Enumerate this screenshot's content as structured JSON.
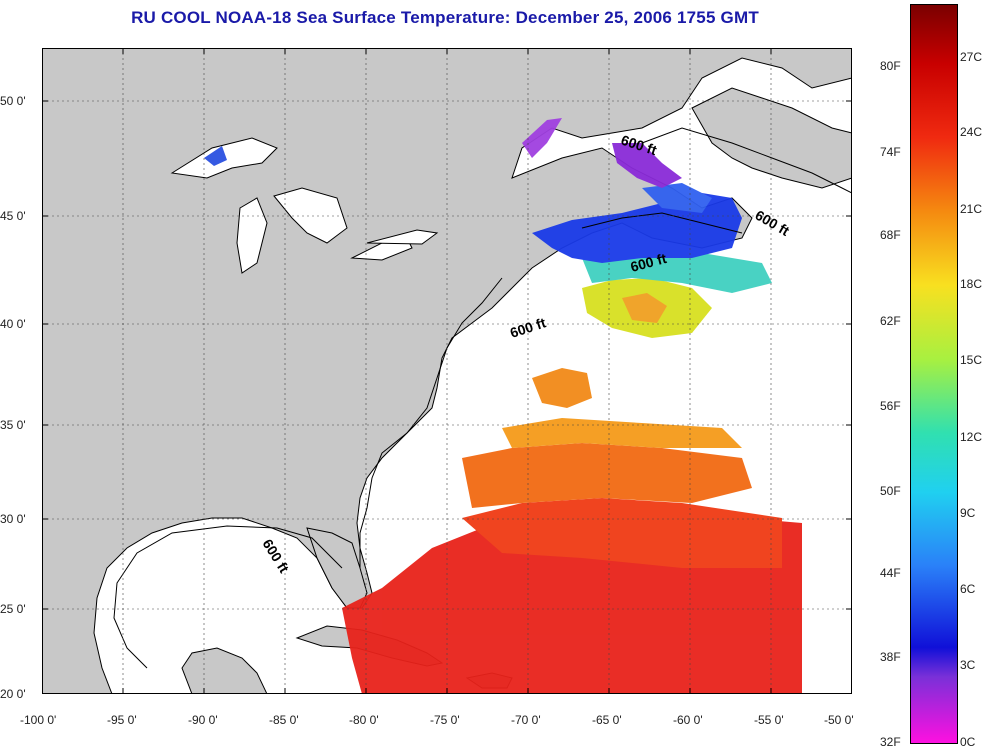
{
  "title": "RU COOL  NOAA-18  Sea Surface Temperature:  December 25, 2006 1755 GMT",
  "map": {
    "lon_ticks": [
      "-100 0'",
      "-95 0'",
      "-90 0'",
      "-85 0'",
      "-80 0'",
      "-75 0'",
      "-70 0'",
      "-65 0'",
      "-60 0'",
      "-55 0'",
      "-50 0'"
    ],
    "lat_ticks": [
      "50 0'",
      "45 0'",
      "40 0'",
      "35 0'",
      "30 0'",
      "25 0'",
      "20 0'"
    ],
    "contour_labels": [
      "600 ft",
      "600 ft",
      "600 ft",
      "600 ft",
      "600 ft"
    ],
    "colors": {
      "land": "#c8c8c8",
      "ocean_no_data": "#ffffff",
      "title": "#1a1aa8"
    }
  },
  "colorbar": {
    "fahrenheit_labels": [
      "80F",
      "74F",
      "68F",
      "62F",
      "56F",
      "50F",
      "44F",
      "38F",
      "32F"
    ],
    "celsius_labels": [
      "27C",
      "24C",
      "21C",
      "18C",
      "15C",
      "12C",
      "9C",
      "6C",
      "3C",
      "0C"
    ]
  }
}
